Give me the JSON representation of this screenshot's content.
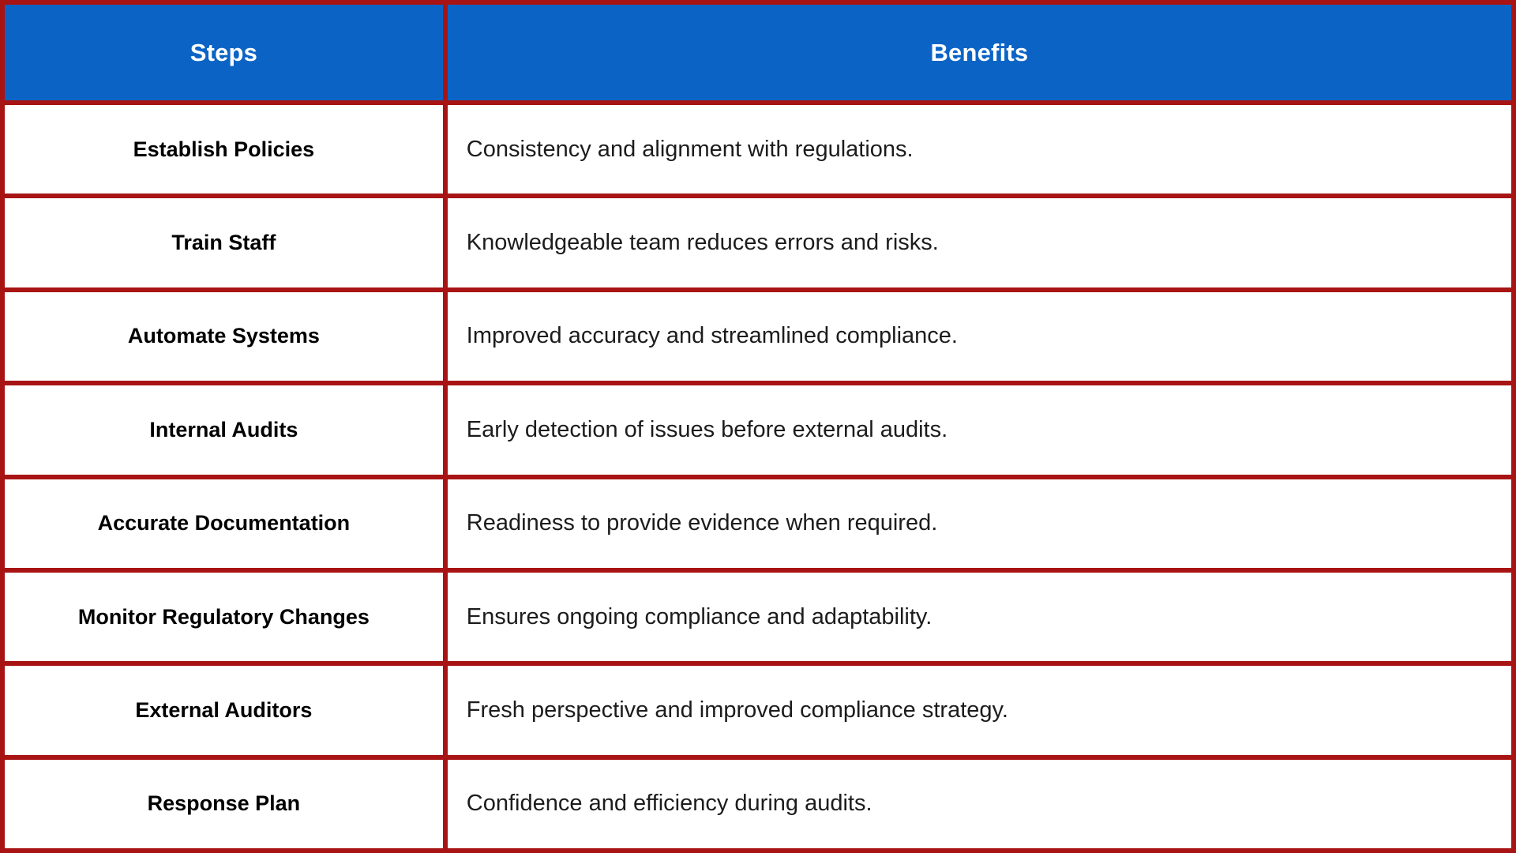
{
  "colors": {
    "header_bg": "#0b64c5",
    "border": "#a81414",
    "header_text": "#ffffff",
    "body_text": "#1c1c1c"
  },
  "table": {
    "columns": [
      {
        "label": "Steps"
      },
      {
        "label": "Benefits"
      }
    ],
    "rows": [
      {
        "step": "Establish Policies",
        "benefit": "Consistency and alignment with regulations."
      },
      {
        "step": "Train Staff",
        "benefit": "Knowledgeable team reduces errors and risks."
      },
      {
        "step": "Automate Systems",
        "benefit": "Improved accuracy and streamlined compliance."
      },
      {
        "step": "Internal Audits",
        "benefit": "Early detection of issues before external audits."
      },
      {
        "step": "Accurate Documentation",
        "benefit": "Readiness to provide evidence when required."
      },
      {
        "step": "Monitor Regulatory Changes",
        "benefit": "Ensures ongoing compliance and adaptability."
      },
      {
        "step": "External Auditors",
        "benefit": "Fresh perspective and improved compliance strategy."
      },
      {
        "step": "Response Plan",
        "benefit": "Confidence and efficiency during audits."
      }
    ]
  },
  "chart_data": {
    "type": "table",
    "title": "",
    "columns": [
      "Steps",
      "Benefits"
    ],
    "rows": [
      [
        "Establish Policies",
        "Consistency and alignment with regulations."
      ],
      [
        "Train Staff",
        "Knowledgeable team reduces errors and risks."
      ],
      [
        "Automate Systems",
        "Improved accuracy and streamlined compliance."
      ],
      [
        "Internal Audits",
        "Early detection of issues before external audits."
      ],
      [
        "Accurate Documentation",
        "Readiness to provide evidence when required."
      ],
      [
        "Monitor Regulatory Changes",
        "Ensures ongoing compliance and adaptability."
      ],
      [
        "External Auditors",
        "Fresh perspective and improved compliance strategy."
      ],
      [
        "Response Plan",
        "Confidence and efficiency during audits."
      ]
    ],
    "layout_hints": {
      "header_background": "#0b64c5",
      "grid_border_color": "#a81414",
      "steps_column_width_pct": 29.3,
      "steps_text_align": "center",
      "benefits_text_align": "left"
    }
  }
}
